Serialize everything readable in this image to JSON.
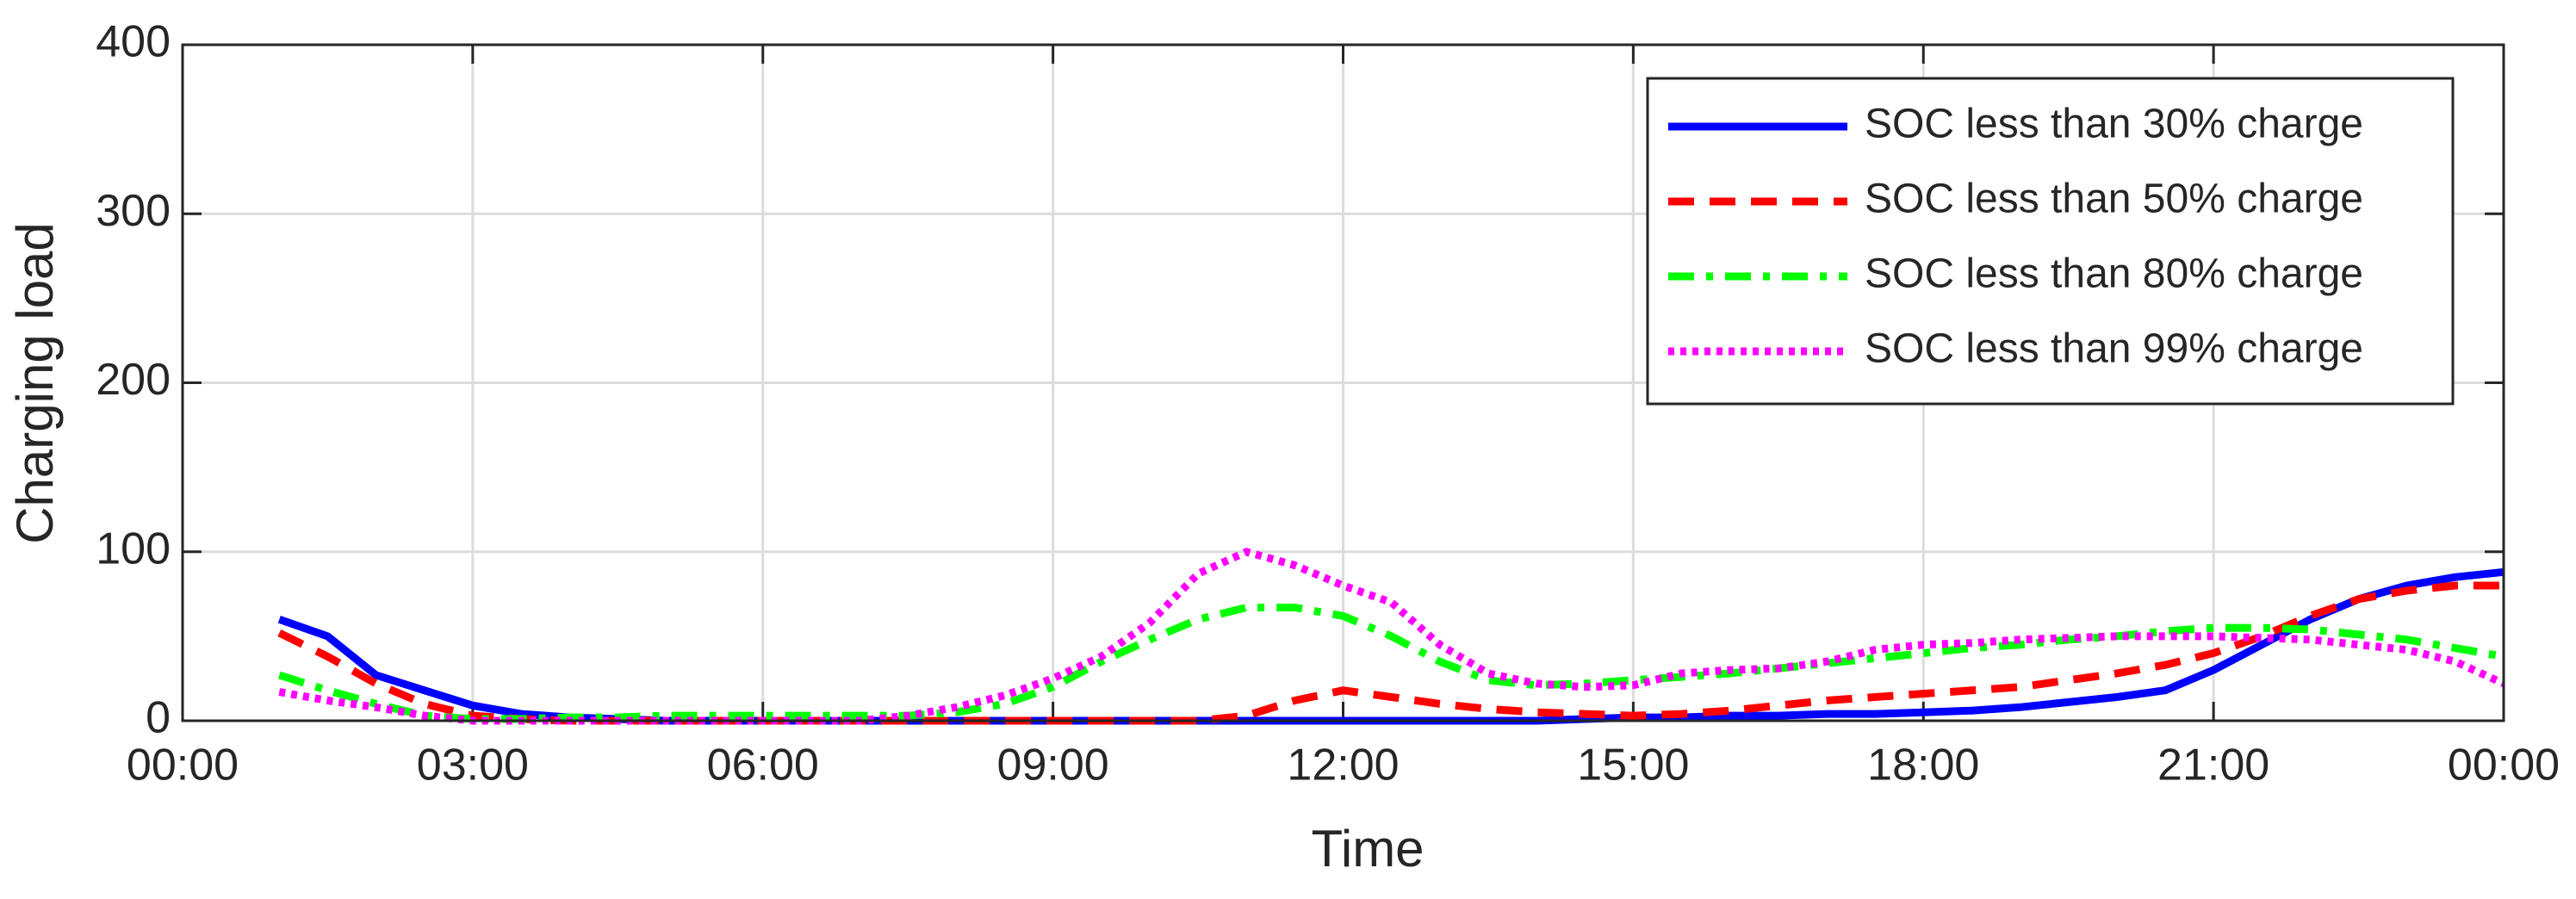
{
  "chart_data": {
    "type": "line",
    "xlabel": "Time",
    "ylabel": "Charging load",
    "x": [
      1,
      1.5,
      2,
      2.5,
      3,
      3.5,
      4,
      4.5,
      5,
      5.5,
      6,
      6.5,
      7,
      7.5,
      8,
      8.5,
      9,
      9.5,
      10,
      10.5,
      11,
      11.5,
      12,
      12.5,
      13,
      13.5,
      14,
      14.5,
      15,
      15.5,
      16,
      16.5,
      17,
      17.5,
      18,
      18.5,
      19,
      19.5,
      20,
      20.5,
      21,
      21.5,
      22,
      22.5,
      23,
      23.5,
      24
    ],
    "series": [
      {
        "name": "SOC less than 30% charge",
        "color": "#0000ff",
        "dash": "solid",
        "values": [
          60,
          50,
          27,
          18,
          9,
          4,
          2,
          1,
          0,
          0,
          0,
          0,
          0,
          0,
          0,
          0,
          0,
          0,
          0,
          0,
          0,
          0,
          0,
          0,
          0,
          0,
          0,
          1,
          2,
          2,
          3,
          3,
          4,
          4,
          5,
          6,
          8,
          11,
          14,
          18,
          30,
          45,
          60,
          72,
          80,
          85,
          88
        ]
      },
      {
        "name": "SOC less than 50% charge",
        "color": "#ff0000",
        "dash": "dashed",
        "values": [
          52,
          38,
          22,
          10,
          3,
          1,
          0,
          0,
          0,
          0,
          0,
          0,
          0,
          0,
          0,
          0,
          0,
          0,
          0,
          0,
          3,
          12,
          18,
          14,
          10,
          7,
          5,
          4,
          3,
          4,
          6,
          9,
          12,
          14,
          16,
          18,
          20,
          24,
          28,
          33,
          40,
          50,
          62,
          72,
          77,
          80,
          80
        ]
      },
      {
        "name": "SOC less than 80% charge",
        "color": "#00ff00",
        "dash": "dashdot",
        "values": [
          27,
          18,
          10,
          3,
          1,
          1,
          2,
          2,
          3,
          3,
          3,
          3,
          3,
          3,
          5,
          10,
          20,
          35,
          48,
          60,
          67,
          67,
          62,
          50,
          35,
          24,
          21,
          22,
          24,
          26,
          28,
          31,
          34,
          37,
          40,
          43,
          45,
          48,
          50,
          53,
          55,
          55,
          54,
          51,
          48,
          43,
          38
        ]
      },
      {
        "name": "SOC less than 99% charge",
        "color": "#ff00ff",
        "dash": "dotted",
        "values": [
          17,
          12,
          8,
          3,
          0,
          0,
          0,
          0,
          0,
          0,
          0,
          0,
          0,
          3,
          8,
          15,
          25,
          38,
          58,
          87,
          100,
          92,
          80,
          70,
          45,
          28,
          22,
          20,
          21,
          28,
          30,
          31,
          35,
          42,
          45,
          46,
          48,
          49,
          50,
          50,
          50,
          49,
          48,
          45,
          42,
          35,
          22
        ]
      }
    ],
    "xlim": [
      0,
      24
    ],
    "xticks": [
      {
        "value": 0,
        "label": "00:00"
      },
      {
        "value": 3,
        "label": "03:00"
      },
      {
        "value": 6,
        "label": "06:00"
      },
      {
        "value": 9,
        "label": "09:00"
      },
      {
        "value": 12,
        "label": "12:00"
      },
      {
        "value": 15,
        "label": "15:00"
      },
      {
        "value": 18,
        "label": "18:00"
      },
      {
        "value": 21,
        "label": "21:00"
      },
      {
        "value": 24,
        "label": "00:00"
      }
    ],
    "ylim": [
      0,
      400
    ],
    "yticks": [
      0,
      100,
      200,
      300,
      400
    ],
    "grid": true,
    "legend": "upper right"
  }
}
